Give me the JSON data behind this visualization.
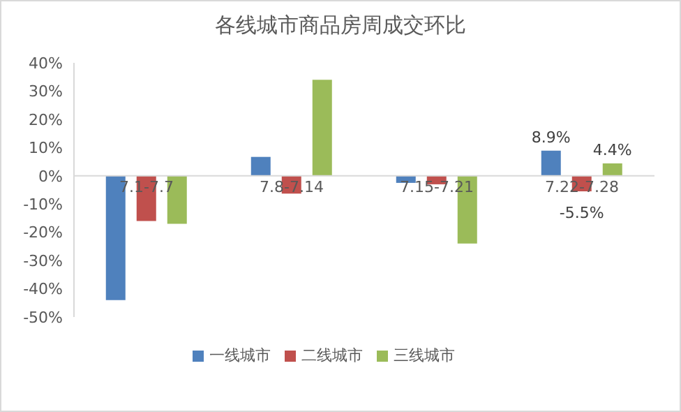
{
  "chart_data": {
    "type": "bar",
    "title": "各线城市商品房周成交环比",
    "categories": [
      "7.1-7.7",
      "7.8-7.14",
      "7.15-7.21",
      "7.22-7.28"
    ],
    "series": [
      {
        "name": "一线城市",
        "color": "#4f81bd",
        "values": [
          -44,
          6.7,
          -2.5,
          8.9
        ],
        "value_labels": [
          null,
          null,
          null,
          "8.9%"
        ]
      },
      {
        "name": "二线城市",
        "color": "#c0504d",
        "values": [
          -16,
          -6.3,
          -3,
          -5.5
        ],
        "value_labels": [
          null,
          null,
          null,
          "-5.5%"
        ]
      },
      {
        "name": "三线城市",
        "color": "#9bbb59",
        "values": [
          -17,
          34,
          -24,
          4.4
        ],
        "value_labels": [
          null,
          null,
          null,
          "4.4%"
        ]
      }
    ],
    "ylim": [
      -50,
      40
    ],
    "yticks": [
      {
        "value": -50,
        "label": "-50%"
      },
      {
        "value": -40,
        "label": "-40%"
      },
      {
        "value": -30,
        "label": "-30%"
      },
      {
        "value": -20,
        "label": "-20%"
      },
      {
        "value": -10,
        "label": "-10%"
      },
      {
        "value": 0,
        "label": "0%"
      },
      {
        "value": 10,
        "label": "10%"
      },
      {
        "value": 20,
        "label": "20%"
      },
      {
        "value": 30,
        "label": "30%"
      },
      {
        "value": 40,
        "label": "40%"
      }
    ],
    "grid": false,
    "legend": "bottom"
  }
}
